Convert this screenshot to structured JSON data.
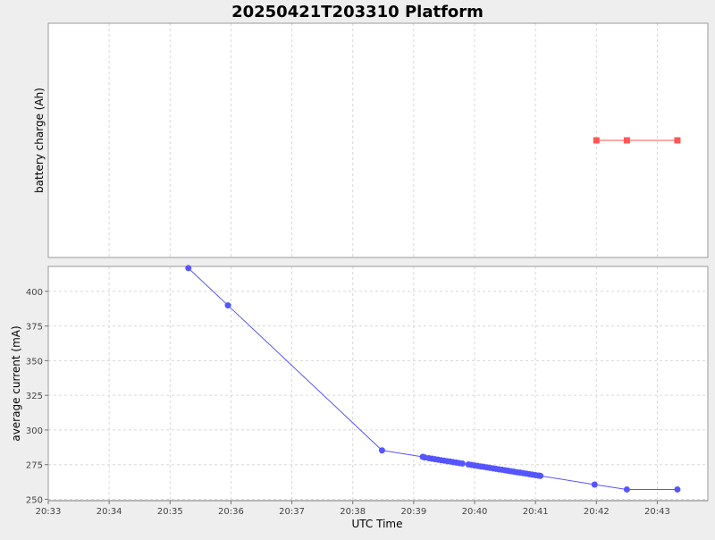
{
  "chart_data": {
    "type": "line",
    "title": "20250421T203310 Platform",
    "xlabel": "UTC Time",
    "x_unit": "minutes after 20:00 UTC",
    "xlim": [
      33.0,
      43.83
    ],
    "x_ticks": [
      {
        "value": 33,
        "label": "20:33"
      },
      {
        "value": 34,
        "label": "20:34"
      },
      {
        "value": 35,
        "label": "20:35"
      },
      {
        "value": 36,
        "label": "20:36"
      },
      {
        "value": 37,
        "label": "20:37"
      },
      {
        "value": 38,
        "label": "20:38"
      },
      {
        "value": 39,
        "label": "20:39"
      },
      {
        "value": 40,
        "label": "20:40"
      },
      {
        "value": 41,
        "label": "20:41"
      },
      {
        "value": 42,
        "label": "20:42"
      },
      {
        "value": 43,
        "label": "20:43"
      }
    ],
    "grid": true,
    "panels": [
      {
        "ylabel": "battery charge (Ah)",
        "yticks": [],
        "ylim": [
          0,
          1
        ],
        "marker": "square",
        "color": "#ff5555",
        "series": [
          {
            "x": [
              42.0,
              42.5,
              43.33
            ],
            "y": [
              0.5,
              0.5,
              0.5
            ]
          }
        ]
      },
      {
        "ylabel": "average current (mA)",
        "yticks": [
          250,
          275,
          300,
          325,
          350,
          375,
          400
        ],
        "ylim": [
          249,
          418
        ],
        "marker": "circle",
        "color": "#5555ff",
        "series": [
          {
            "x": [
              35.3,
              35.95,
              38.48,
              39.15,
              39.18,
              39.25,
              39.3,
              39.35,
              39.4,
              39.45,
              39.5,
              39.55,
              39.6,
              39.65,
              39.7,
              39.75,
              39.8,
              39.9,
              39.95,
              40.0,
              40.05,
              40.1,
              40.15,
              40.2,
              40.25,
              40.3,
              40.35,
              40.4,
              40.45,
              40.5,
              40.55,
              40.6,
              40.65,
              40.7,
              40.75,
              40.8,
              40.85,
              40.9,
              40.95,
              41.0,
              41.05,
              41.08,
              41.97,
              42.5,
              43.33
            ],
            "y": [
              416.8,
              389.9,
              285.3,
              280.6,
              280.2,
              279.6,
              279.3,
              278.9,
              278.6,
              278.2,
              277.9,
              277.5,
              277.2,
              276.8,
              276.5,
              276.1,
              275.8,
              275.1,
              274.8,
              274.4,
              274.1,
              273.7,
              273.4,
              273.0,
              272.7,
              272.3,
              272.0,
              271.6,
              271.3,
              270.9,
              270.6,
              270.2,
              269.9,
              269.5,
              269.2,
              268.8,
              268.5,
              268.1,
              267.8,
              267.4,
              267.1,
              266.9,
              260.6,
              257.1,
              257.1
            ]
          }
        ]
      }
    ]
  }
}
